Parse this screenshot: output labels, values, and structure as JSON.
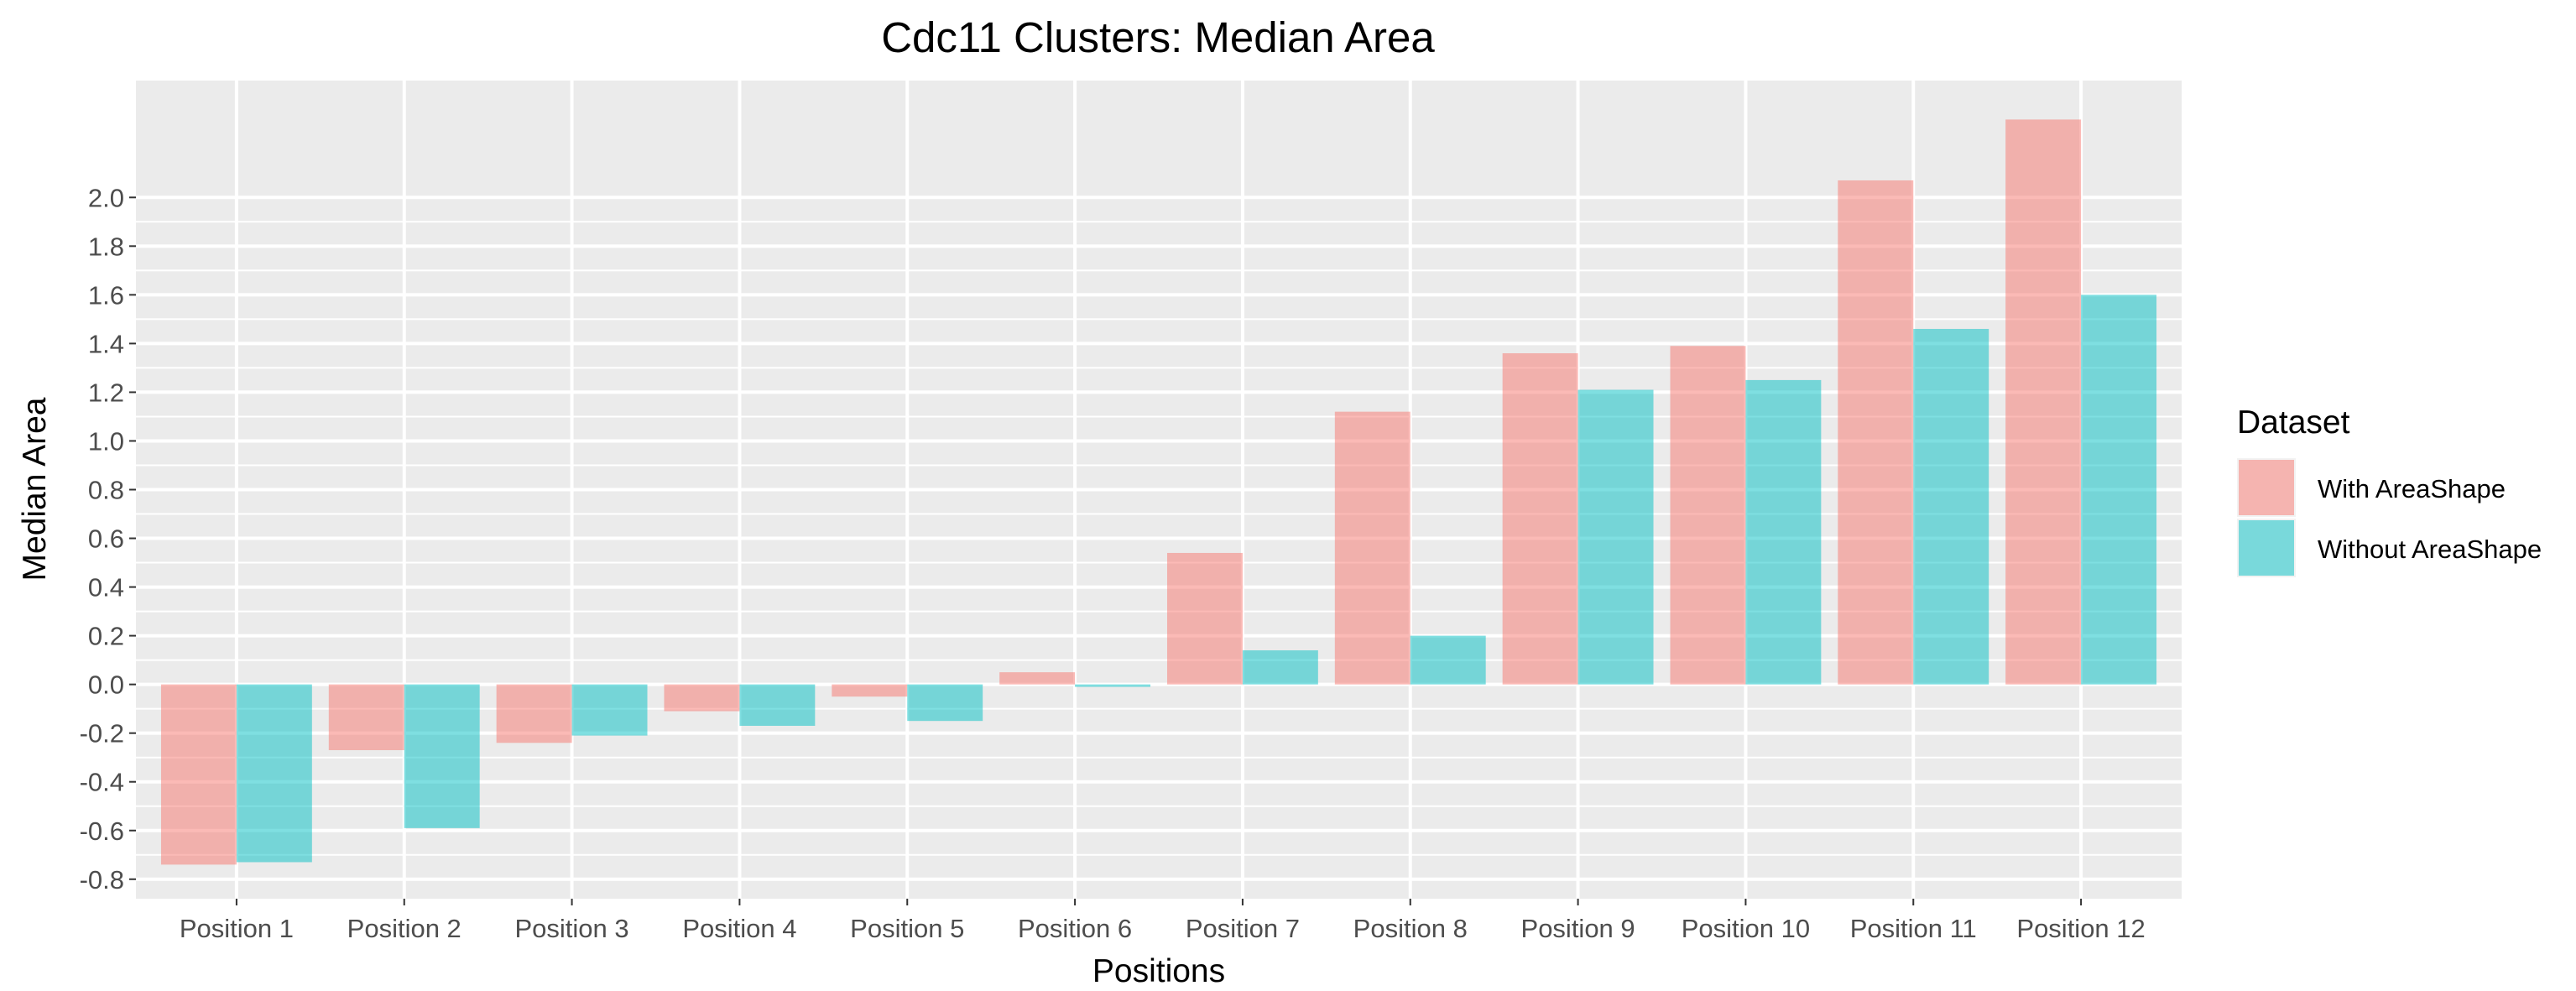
{
  "chart_data": {
    "type": "bar",
    "title": "Cdc11 Clusters: Median Area",
    "xlabel": "Positions",
    "ylabel": "Median Area",
    "categories": [
      "Position 1",
      "Position 2",
      "Position 3",
      "Position 4",
      "Position 5",
      "Position 6",
      "Position 7",
      "Position 8",
      "Position 9",
      "Position 10",
      "Position 11",
      "Position 12"
    ],
    "series": [
      {
        "name": "With AreaShape",
        "color": "#F8766D",
        "values": [
          -0.74,
          -0.27,
          -0.24,
          -0.11,
          -0.05,
          0.05,
          0.54,
          1.12,
          1.36,
          1.39,
          2.07,
          2.32
        ]
      },
      {
        "name": "Without AreaShape",
        "color": "#00BFC4",
        "values": [
          -0.73,
          -0.59,
          -0.21,
          -0.17,
          -0.15,
          -0.01,
          0.14,
          0.2,
          1.21,
          1.25,
          1.46,
          1.6
        ]
      }
    ],
    "ylim": [
      -0.88,
      2.48
    ],
    "yticks": [
      -0.8,
      -0.6,
      -0.4,
      -0.2,
      0.0,
      0.2,
      0.4,
      0.6,
      0.8,
      1.0,
      1.2,
      1.4,
      1.6,
      1.8,
      2.0
    ],
    "ytick_labels": [
      "-0.8",
      "-0.6",
      "-0.4",
      "-0.2",
      "0.0",
      "0.2",
      "0.4",
      "0.6",
      "0.8",
      "1.0",
      "1.2",
      "1.4",
      "1.6",
      "1.8",
      "2.0"
    ],
    "bar_opacity": 0.5,
    "grid": true,
    "panel_background": "#EBEBEB",
    "grid_color": "#FFFFFF",
    "legend": {
      "title": "Dataset",
      "position": "right"
    }
  }
}
